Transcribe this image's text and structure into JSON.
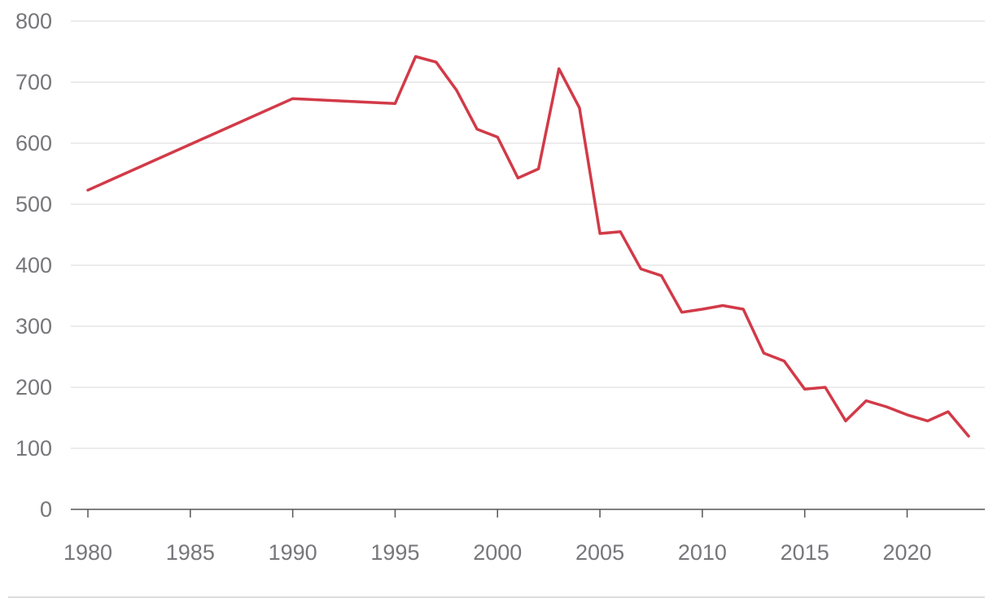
{
  "chart_data": {
    "type": "line",
    "title": "",
    "xlabel": "",
    "ylabel": "",
    "xlim": [
      1980,
      2023
    ],
    "ylim": [
      0,
      800
    ],
    "y_ticks": [
      0,
      100,
      200,
      300,
      400,
      500,
      600,
      700,
      800
    ],
    "x_ticks": [
      1980,
      1985,
      1990,
      1995,
      2000,
      2005,
      2010,
      2015,
      2020
    ],
    "grid": "horizontal",
    "series": [
      {
        "color": "#d23a48",
        "x": [
          1980,
          1990,
          1995,
          1996,
          1997,
          1998,
          1999,
          2000,
          2001,
          2002,
          2003,
          2004,
          2005,
          2006,
          2007,
          2008,
          2009,
          2010,
          2011,
          2012,
          2013,
          2014,
          2015,
          2016,
          2017,
          2018,
          2019,
          2020,
          2021,
          2022,
          2023
        ],
        "y": [
          523,
          673,
          665,
          742,
          733,
          687,
          623,
          610,
          543,
          558,
          722,
          658,
          452,
          455,
          394,
          383,
          323,
          328,
          334,
          328,
          256,
          243,
          197,
          200,
          145,
          178,
          168,
          155,
          145,
          160,
          120
        ]
      }
    ]
  }
}
